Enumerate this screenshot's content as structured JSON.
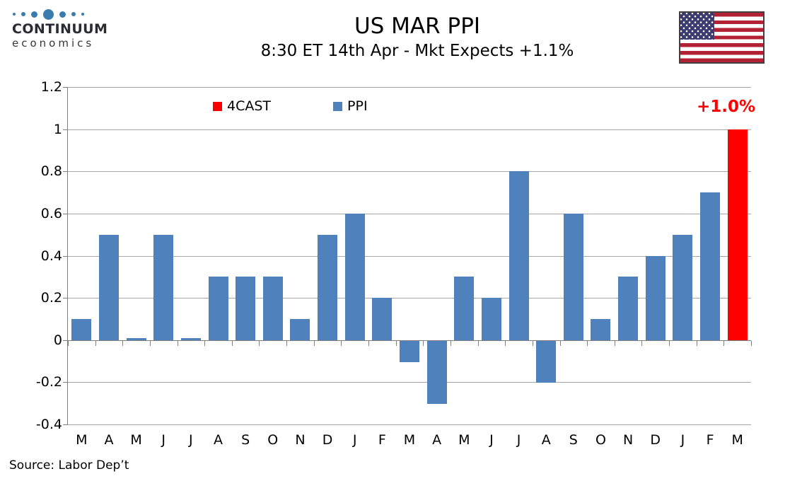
{
  "logo": {
    "brand": "CONTINUUM",
    "sub": "economics",
    "dot_color": "#3b7cae"
  },
  "header": {
    "title": "US MAR PPI",
    "subtitle": "8:30 ET 14th Apr - Mkt Expects +1.1%"
  },
  "legend": [
    {
      "label": "4CAST",
      "color": "#ff0000"
    },
    {
      "label": "PPI",
      "color": "#4f81bd"
    }
  ],
  "annotation": {
    "text": "+1.0%",
    "color": "#ff0000"
  },
  "source": "Source: Labor Dep’t",
  "colors": {
    "ppi_bar": "#4f81bd",
    "forecast_bar": "#ff0000",
    "gridline": "#a6a6a6",
    "axis": "#7f7f7f"
  },
  "chart_data": {
    "type": "bar",
    "title": "US MAR PPI",
    "subtitle": "8:30 ET 14th Apr - Mkt Expects +1.1%",
    "categories": [
      "M",
      "A",
      "M",
      "J",
      "J",
      "A",
      "S",
      "O",
      "N",
      "D",
      "J",
      "F",
      "M",
      "A",
      "M",
      "J",
      "J",
      "A",
      "S",
      "O",
      "N",
      "D",
      "J",
      "F",
      "M"
    ],
    "series": [
      {
        "name": "PPI",
        "color": "#4f81bd",
        "values": [
          0.1,
          0.5,
          0.01,
          0.5,
          0.01,
          0.3,
          0.3,
          0.3,
          0.1,
          0.5,
          0.6,
          0.2,
          -0.1,
          -0.3,
          0.3,
          0.2,
          0.8,
          -0.2,
          0.6,
          0.1,
          0.3,
          0.4,
          0.5,
          0.7,
          null
        ]
      },
      {
        "name": "4CAST",
        "color": "#ff0000",
        "values": [
          null,
          null,
          null,
          null,
          null,
          null,
          null,
          null,
          null,
          null,
          null,
          null,
          null,
          null,
          null,
          null,
          null,
          null,
          null,
          null,
          null,
          null,
          null,
          null,
          1.0
        ]
      }
    ],
    "ylim": [
      -0.4,
      1.2
    ],
    "y_ticks": [
      1.2,
      1,
      0.8,
      0.6,
      0.4,
      0.2,
      0,
      -0.2,
      -0.4
    ],
    "xlabel": "",
    "ylabel": "",
    "grid": true,
    "legend_position": "top-center",
    "annotation": "+1.0%"
  }
}
